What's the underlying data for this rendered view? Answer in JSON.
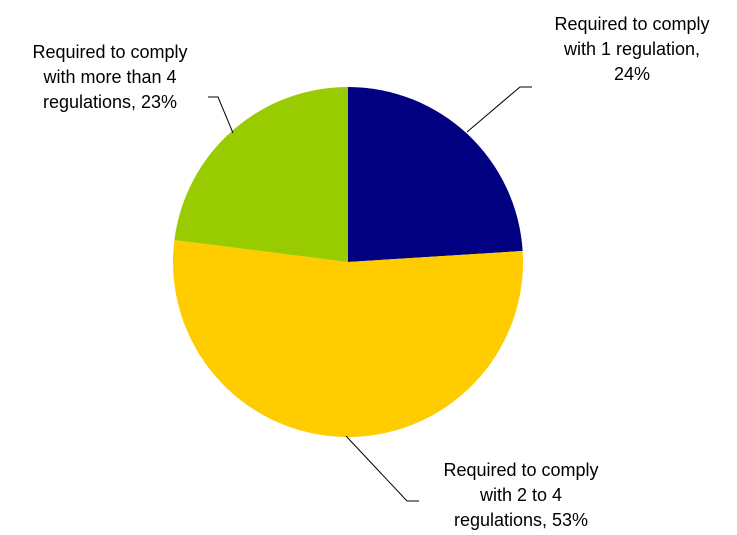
{
  "chart_data": {
    "type": "pie",
    "start_angle_deg": 0,
    "direction": "clockwise",
    "slices": [
      {
        "label_lines": [
          "Required to comply",
          "with 1 regulation,",
          "24%"
        ],
        "category": "Required to comply with 1 regulation",
        "value": 24,
        "color": "#000080"
      },
      {
        "label_lines": [
          "Required to comply",
          "with 2 to 4",
          "regulations, 53%"
        ],
        "category": "Required to comply with 2 to 4 regulations",
        "value": 53,
        "color": "#FFCC00"
      },
      {
        "label_lines": [
          "Required to comply",
          "with more than 4",
          "regulations, 23%"
        ],
        "category": "Required to comply with more than 4 regulations",
        "value": 23,
        "color": "#99CC00"
      }
    ],
    "legend": "none",
    "title": ""
  }
}
